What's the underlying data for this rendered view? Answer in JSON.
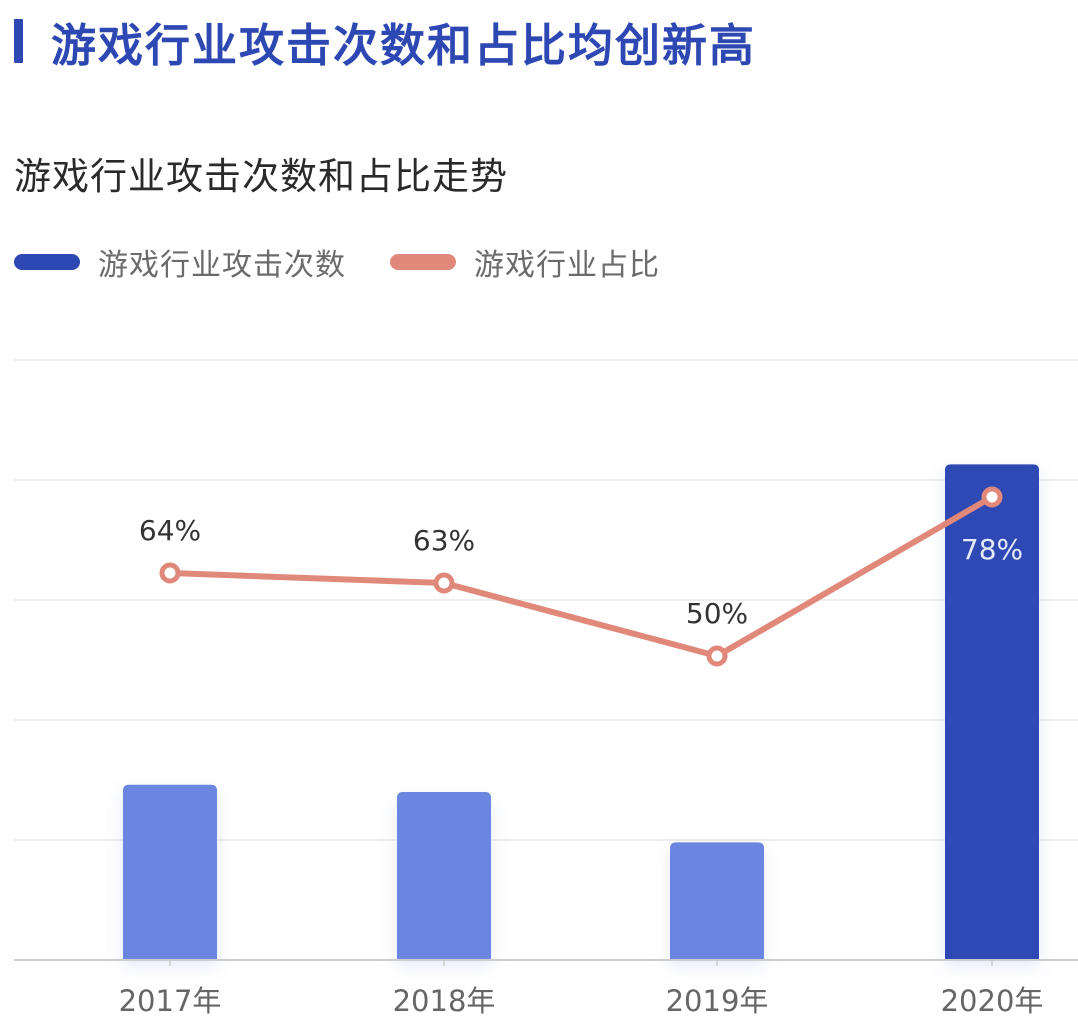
{
  "headline": "游戏行业攻击次数和占比均创新高",
  "subtitle": "游戏行业攻击次数和占比走势",
  "legend": [
    {
      "label": "游戏行业攻击次数",
      "color": "#2e48b3"
    },
    {
      "label": "游戏行业占比",
      "color": "#e0897a"
    }
  ],
  "colors": {
    "bar_normal": "#6a86e0",
    "bar_highlight": "#2e48b3",
    "line": "#e0897a",
    "grid": "#eeeeee",
    "axis": "#cccccc"
  },
  "chart_data": {
    "type": "bar+line",
    "title": "游戏行业攻击次数和占比走势",
    "categories": [
      "2017年",
      "2018年",
      "2019年",
      "2020年"
    ],
    "series": [
      {
        "name": "游戏行业攻击次数",
        "type": "bar",
        "axis": "left",
        "values": [
          1.46,
          1.4,
          0.98,
          4.13
        ],
        "unit": "relative (grid units, no axis labels shown)"
      },
      {
        "name": "游戏行业占比",
        "type": "line",
        "axis": "right",
        "values": [
          64,
          63,
          50,
          78
        ],
        "labels": [
          "64%",
          "63%",
          "50%",
          "78%"
        ]
      }
    ],
    "xlabel": "",
    "ylabel": "",
    "grid": true,
    "grid_lines": 5,
    "legend_position": "top-left",
    "highlight_category": "2020年"
  }
}
